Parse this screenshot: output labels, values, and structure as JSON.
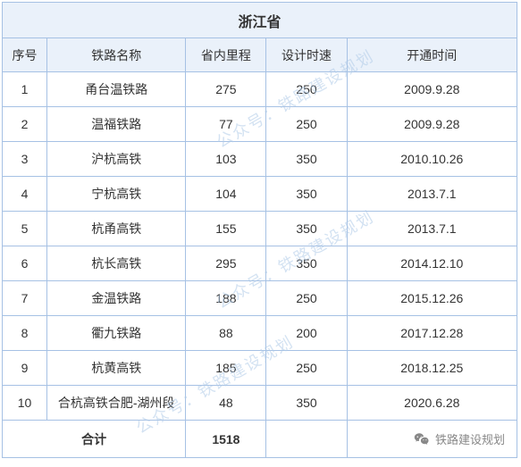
{
  "title": "浙江省",
  "headers": {
    "seq": "序号",
    "name": "铁路名称",
    "mileage": "省内里程",
    "speed": "设计时速",
    "date": "开通时间"
  },
  "rows": [
    {
      "seq": "1",
      "name": "甬台温铁路",
      "mileage": "275",
      "speed": "250",
      "date": "2009.9.28"
    },
    {
      "seq": "2",
      "name": "温福铁路",
      "mileage": "77",
      "speed": "250",
      "date": "2009.9.28"
    },
    {
      "seq": "3",
      "name": "沪杭高铁",
      "mileage": "103",
      "speed": "350",
      "date": "2010.10.26"
    },
    {
      "seq": "4",
      "name": "宁杭高铁",
      "mileage": "104",
      "speed": "350",
      "date": "2013.7.1"
    },
    {
      "seq": "5",
      "name": "杭甬高铁",
      "mileage": "155",
      "speed": "350",
      "date": "2013.7.1"
    },
    {
      "seq": "6",
      "name": "杭长高铁",
      "mileage": "295",
      "speed": "350",
      "date": "2014.12.10"
    },
    {
      "seq": "7",
      "name": "金温铁路",
      "mileage": "188",
      "speed": "250",
      "date": "2015.12.26"
    },
    {
      "seq": "8",
      "name": "衢九铁路",
      "mileage": "88",
      "speed": "200",
      "date": "2017.12.28"
    },
    {
      "seq": "9",
      "name": "杭黄高铁",
      "mileage": "185",
      "speed": "250",
      "date": "2018.12.25"
    },
    {
      "seq": "10",
      "name": "合杭高铁合肥-湖州段",
      "mileage": "48",
      "speed": "350",
      "date": "2020.6.28"
    }
  ],
  "total": {
    "label": "合计",
    "mileage": "1518"
  },
  "watermark_text": "公众号：铁路建设规划",
  "credit_text": "铁路建设规划",
  "colors": {
    "header_bg": "#eaf1fa",
    "border": "#a6c1e4",
    "text": "#333",
    "watermark": "#b0cbe8",
    "credit": "#888"
  }
}
